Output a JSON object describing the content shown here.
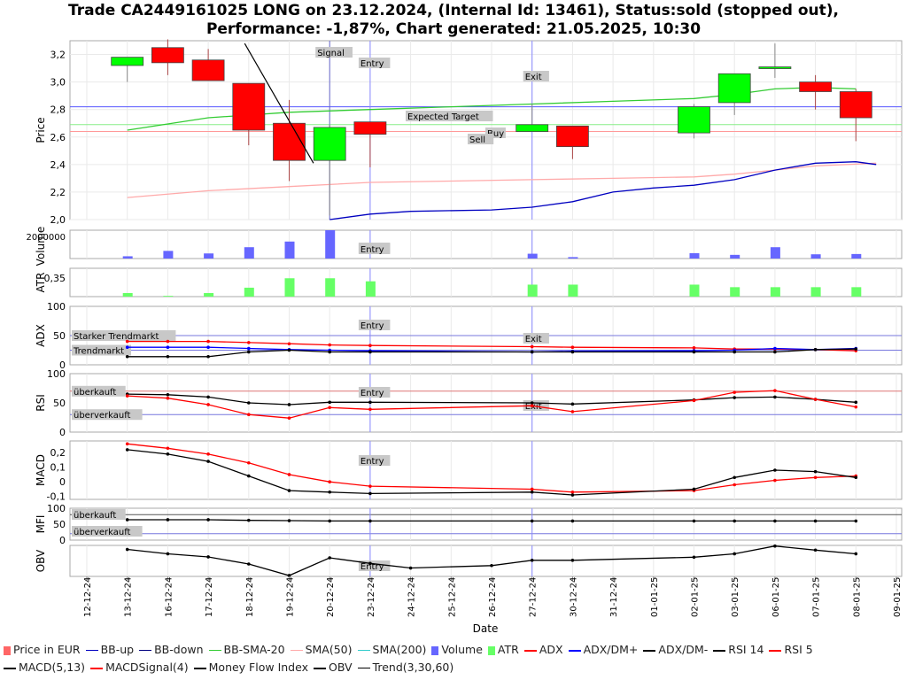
{
  "title_line1": "Trade CA2449161025 LONG on 23.12.2024, (Internal Id: 13461), Status:sold (stopped out),",
  "title_line2": "Performance: -1,87%, Chart generated: 21.05.2025, 10:30",
  "colors": {
    "up": "#00ff00",
    "down": "#ff0000",
    "bb_up": "#0000c0",
    "bb_down": "#0000c0",
    "bb_sma": "#33cc33",
    "sma50": "#ffaaaa",
    "volume": "#6666ff",
    "atr": "#66ff66",
    "red": "#ff0000",
    "blue": "#0000ff",
    "black": "#000000",
    "marker": "#8888ff"
  },
  "chart_data": {
    "type": "candlestick",
    "xlabel": "Date",
    "dates": [
      "12-12-24",
      "13-12-24",
      "16-12-24",
      "17-12-24",
      "18-12-24",
      "19-12-24",
      "20-12-24",
      "23-12-24",
      "24-12-24",
      "25-12-24",
      "26-12-24",
      "27-12-24",
      "30-12-24",
      "31-12-24",
      "01-01-25",
      "02-01-25",
      "03-01-25",
      "06-01-25",
      "07-01-25",
      "08-01-25",
      "09-01-25"
    ],
    "price": {
      "ylabel": "Price",
      "ylim": [
        2.0,
        3.3
      ],
      "ticks": [
        2.0,
        2.2,
        2.4,
        2.6,
        2.8,
        3.0,
        3.2
      ],
      "tick_labels": [
        "2,0",
        "2,2",
        "2,4",
        "2,6",
        "2,8",
        "3,0",
        "3,2"
      ],
      "candles": [
        {
          "i": 1,
          "o": 3.12,
          "h": 3.18,
          "l": 3.0,
          "c": 3.18
        },
        {
          "i": 2,
          "o": 3.25,
          "h": 3.31,
          "l": 3.05,
          "c": 3.14
        },
        {
          "i": 3,
          "o": 3.16,
          "h": 3.24,
          "l": 3.01,
          "c": 3.01
        },
        {
          "i": 4,
          "o": 2.99,
          "h": 2.99,
          "l": 2.54,
          "c": 2.65
        },
        {
          "i": 5,
          "o": 2.7,
          "h": 2.87,
          "l": 2.28,
          "c": 2.43
        },
        {
          "i": 6,
          "o": 2.43,
          "h": 2.69,
          "l": 2.03,
          "c": 2.67
        },
        {
          "i": 7,
          "o": 2.71,
          "h": 2.71,
          "l": 2.38,
          "c": 2.62
        },
        {
          "i": 11,
          "o": 2.64,
          "h": 2.84,
          "l": 2.64,
          "c": 2.69
        },
        {
          "i": 12,
          "o": 2.68,
          "h": 2.68,
          "l": 2.44,
          "c": 2.53
        },
        {
          "i": 15,
          "o": 2.63,
          "h": 2.84,
          "l": 2.59,
          "c": 2.82
        },
        {
          "i": 16,
          "o": 2.85,
          "h": 3.06,
          "l": 2.76,
          "c": 3.06
        },
        {
          "i": 17,
          "o": 3.1,
          "h": 3.28,
          "l": 3.03,
          "c": 3.11
        },
        {
          "i": 18,
          "o": 3.0,
          "h": 3.05,
          "l": 2.8,
          "c": 2.93
        },
        {
          "i": 19,
          "o": 2.93,
          "h": 2.95,
          "l": 2.57,
          "c": 2.74
        }
      ],
      "bb_up": [
        [
          1,
          2.65
        ],
        [
          3,
          2.74
        ],
        [
          5,
          2.78
        ],
        [
          7,
          2.8
        ],
        [
          9,
          2.82
        ],
        [
          11,
          2.84
        ],
        [
          13,
          2.86
        ],
        [
          15,
          2.88
        ],
        [
          16,
          2.91
        ],
        [
          17,
          2.95
        ],
        [
          18,
          2.96
        ],
        [
          19,
          2.95
        ]
      ],
      "bb_sma20": [
        [
          1,
          2.65
        ],
        [
          3,
          2.74
        ],
        [
          5,
          2.78
        ],
        [
          7,
          2.8
        ],
        [
          9,
          2.82
        ],
        [
          11,
          2.84
        ],
        [
          13,
          2.86
        ],
        [
          15,
          2.88
        ],
        [
          16,
          2.91
        ],
        [
          17,
          2.95
        ],
        [
          18,
          2.96
        ],
        [
          19,
          2.95
        ]
      ],
      "bb_down": [
        [
          6,
          2.0
        ],
        [
          7,
          2.04
        ],
        [
          8,
          2.06
        ],
        [
          10,
          2.07
        ],
        [
          11,
          2.09
        ],
        [
          12,
          2.13
        ],
        [
          13,
          2.2
        ],
        [
          14,
          2.23
        ],
        [
          15,
          2.25
        ],
        [
          16,
          2.29
        ],
        [
          17,
          2.36
        ],
        [
          18,
          2.41
        ],
        [
          19,
          2.42
        ],
        [
          19.5,
          2.4
        ]
      ],
      "sma50": [
        [
          1,
          2.16
        ],
        [
          3,
          2.21
        ],
        [
          5,
          2.24
        ],
        [
          7,
          2.27
        ],
        [
          9,
          2.28
        ],
        [
          11,
          2.29
        ],
        [
          13,
          2.3
        ],
        [
          15,
          2.31
        ],
        [
          16,
          2.33
        ],
        [
          17,
          2.36
        ],
        [
          18,
          2.39
        ],
        [
          19.5,
          2.41
        ]
      ],
      "expected_target": 2.82,
      "green_level": 2.69,
      "red_level": 2.64,
      "trend_line": [
        [
          3.9,
          3.28
        ],
        [
          5.6,
          2.41
        ]
      ],
      "labels": {
        "signal": "Signal",
        "entry": "Entry",
        "exit": "Exit",
        "expected_target": "Expected Target",
        "buy": "Buy",
        "sell": "Sell"
      }
    },
    "volume": {
      "ylabel": "Volume",
      "tick_label": "2000000",
      "bars": [
        [
          1,
          0.08
        ],
        [
          2,
          0.27
        ],
        [
          3,
          0.18
        ],
        [
          4,
          0.4
        ],
        [
          5,
          0.6
        ],
        [
          6,
          1.0
        ],
        [
          11,
          0.17
        ],
        [
          12,
          0.05
        ],
        [
          15,
          0.19
        ],
        [
          16,
          0.13
        ],
        [
          17,
          0.4
        ],
        [
          18,
          0.15
        ],
        [
          19,
          0.16
        ]
      ]
    },
    "atr": {
      "ylabel": "ATR",
      "tick_label": "0,35",
      "bars": [
        [
          1,
          0.14
        ],
        [
          2,
          0.03
        ],
        [
          3,
          0.14
        ],
        [
          4,
          0.35
        ],
        [
          5,
          0.72
        ],
        [
          6,
          0.72
        ],
        [
          7,
          0.6
        ],
        [
          11,
          0.47
        ],
        [
          12,
          0.47
        ],
        [
          15,
          0.47
        ],
        [
          16,
          0.37
        ],
        [
          17,
          0.37
        ],
        [
          18,
          0.37
        ],
        [
          19,
          0.37
        ]
      ]
    },
    "adx": {
      "ylabel": "ADX",
      "ticks": [
        0,
        50,
        100
      ],
      "labels": {
        "strong": "Starker Trendmarkt",
        "trend": "Trendmarkt"
      },
      "adx": [
        [
          1,
          40
        ],
        [
          2,
          40
        ],
        [
          3,
          40
        ],
        [
          4,
          38
        ],
        [
          5,
          36
        ],
        [
          6,
          34
        ],
        [
          7,
          33
        ],
        [
          11,
          31
        ],
        [
          12,
          30
        ],
        [
          15,
          29
        ],
        [
          16,
          27
        ],
        [
          17,
          27
        ],
        [
          18,
          26
        ],
        [
          19,
          24
        ]
      ],
      "dm_plus": [
        [
          1,
          30
        ],
        [
          2,
          30
        ],
        [
          3,
          30
        ],
        [
          4,
          28
        ],
        [
          5,
          26
        ],
        [
          6,
          25
        ],
        [
          7,
          24
        ],
        [
          11,
          22
        ],
        [
          12,
          23
        ],
        [
          15,
          24
        ],
        [
          16,
          25
        ],
        [
          17,
          28
        ],
        [
          18,
          26
        ],
        [
          19,
          28
        ]
      ],
      "dm_minus": [
        [
          1,
          14
        ],
        [
          2,
          14
        ],
        [
          3,
          14
        ],
        [
          4,
          22
        ],
        [
          5,
          25
        ],
        [
          6,
          22
        ],
        [
          7,
          22
        ],
        [
          11,
          22
        ],
        [
          12,
          22
        ],
        [
          15,
          22
        ],
        [
          16,
          22
        ],
        [
          17,
          22
        ],
        [
          18,
          26
        ],
        [
          19,
          27
        ]
      ]
    },
    "rsi": {
      "ylabel": "RSI",
      "ticks": [
        0,
        50,
        100
      ],
      "labels": {
        "over": "überkauft",
        "under": "überverkauft"
      },
      "rsi14": [
        [
          1,
          65
        ],
        [
          2,
          64
        ],
        [
          3,
          60
        ],
        [
          4,
          50
        ],
        [
          5,
          47
        ],
        [
          6,
          51
        ],
        [
          7,
          51
        ],
        [
          11,
          50
        ],
        [
          12,
          48
        ],
        [
          15,
          55
        ],
        [
          16,
          59
        ],
        [
          17,
          60
        ],
        [
          18,
          56
        ],
        [
          19,
          51
        ]
      ],
      "rsi5": [
        [
          1,
          62
        ],
        [
          2,
          58
        ],
        [
          3,
          47
        ],
        [
          4,
          30
        ],
        [
          5,
          24
        ],
        [
          6,
          42
        ],
        [
          7,
          39
        ],
        [
          11,
          45
        ],
        [
          12,
          35
        ],
        [
          15,
          54
        ],
        [
          16,
          68
        ],
        [
          17,
          71
        ],
        [
          18,
          56
        ],
        [
          19,
          43
        ]
      ]
    },
    "macd": {
      "ylabel": "MACD",
      "ticks": [
        -0.1,
        0,
        0.1,
        0.2
      ],
      "tick_labels": [
        "-0,1",
        "0",
        "0,1",
        "0,2"
      ],
      "macd": [
        [
          1,
          0.22
        ],
        [
          2,
          0.19
        ],
        [
          3,
          0.14
        ],
        [
          4,
          0.04
        ],
        [
          5,
          -0.06
        ],
        [
          6,
          -0.07
        ],
        [
          7,
          -0.08
        ],
        [
          11,
          -0.07
        ],
        [
          12,
          -0.09
        ],
        [
          15,
          -0.05
        ],
        [
          16,
          0.03
        ],
        [
          17,
          0.08
        ],
        [
          18,
          0.07
        ],
        [
          19,
          0.03
        ]
      ],
      "signal": [
        [
          1,
          0.26
        ],
        [
          2,
          0.23
        ],
        [
          3,
          0.19
        ],
        [
          4,
          0.13
        ],
        [
          5,
          0.05
        ],
        [
          6,
          0.0
        ],
        [
          7,
          -0.03
        ],
        [
          11,
          -0.05
        ],
        [
          12,
          -0.07
        ],
        [
          15,
          -0.06
        ],
        [
          16,
          -0.02
        ],
        [
          17,
          0.01
        ],
        [
          18,
          0.03
        ],
        [
          19,
          0.04
        ]
      ]
    },
    "mfi": {
      "ylabel": "MFI",
      "ticks": [
        0,
        50,
        100
      ],
      "labels": {
        "over": "überkauft",
        "under": "überverkauft"
      },
      "values": [
        [
          1,
          64
        ],
        [
          2,
          64
        ],
        [
          3,
          64
        ],
        [
          4,
          62
        ],
        [
          5,
          61
        ],
        [
          6,
          60
        ],
        [
          7,
          60
        ],
        [
          11,
          60
        ],
        [
          12,
          60
        ],
        [
          15,
          60
        ],
        [
          16,
          60
        ],
        [
          17,
          60
        ],
        [
          18,
          60
        ],
        [
          19,
          60
        ]
      ]
    },
    "obv": {
      "ylabel": "OBV",
      "values": [
        [
          1,
          0.87
        ],
        [
          2,
          0.73
        ],
        [
          3,
          0.63
        ],
        [
          4,
          0.4
        ],
        [
          5,
          0.03
        ],
        [
          6,
          0.6
        ],
        [
          7,
          0.42
        ],
        [
          8,
          0.27
        ],
        [
          10,
          0.35
        ],
        [
          11,
          0.52
        ],
        [
          12,
          0.52
        ],
        [
          15,
          0.62
        ],
        [
          16,
          0.73
        ],
        [
          17,
          0.98
        ],
        [
          18,
          0.85
        ],
        [
          19,
          0.73
        ]
      ]
    },
    "legend": [
      "Price in EUR",
      "BB-up",
      "BB-down",
      "BB-SMA-20",
      "SMA(50)",
      "SMA(200)",
      "Volume",
      "ATR",
      "ADX",
      "ADX/DM+",
      "ADX/DM-",
      "RSI 14",
      "RSI 5",
      "MACD(5,13)",
      "MACDSignal(4)",
      "Money Flow Index",
      "OBV",
      "Trend(3,30,60)"
    ]
  }
}
